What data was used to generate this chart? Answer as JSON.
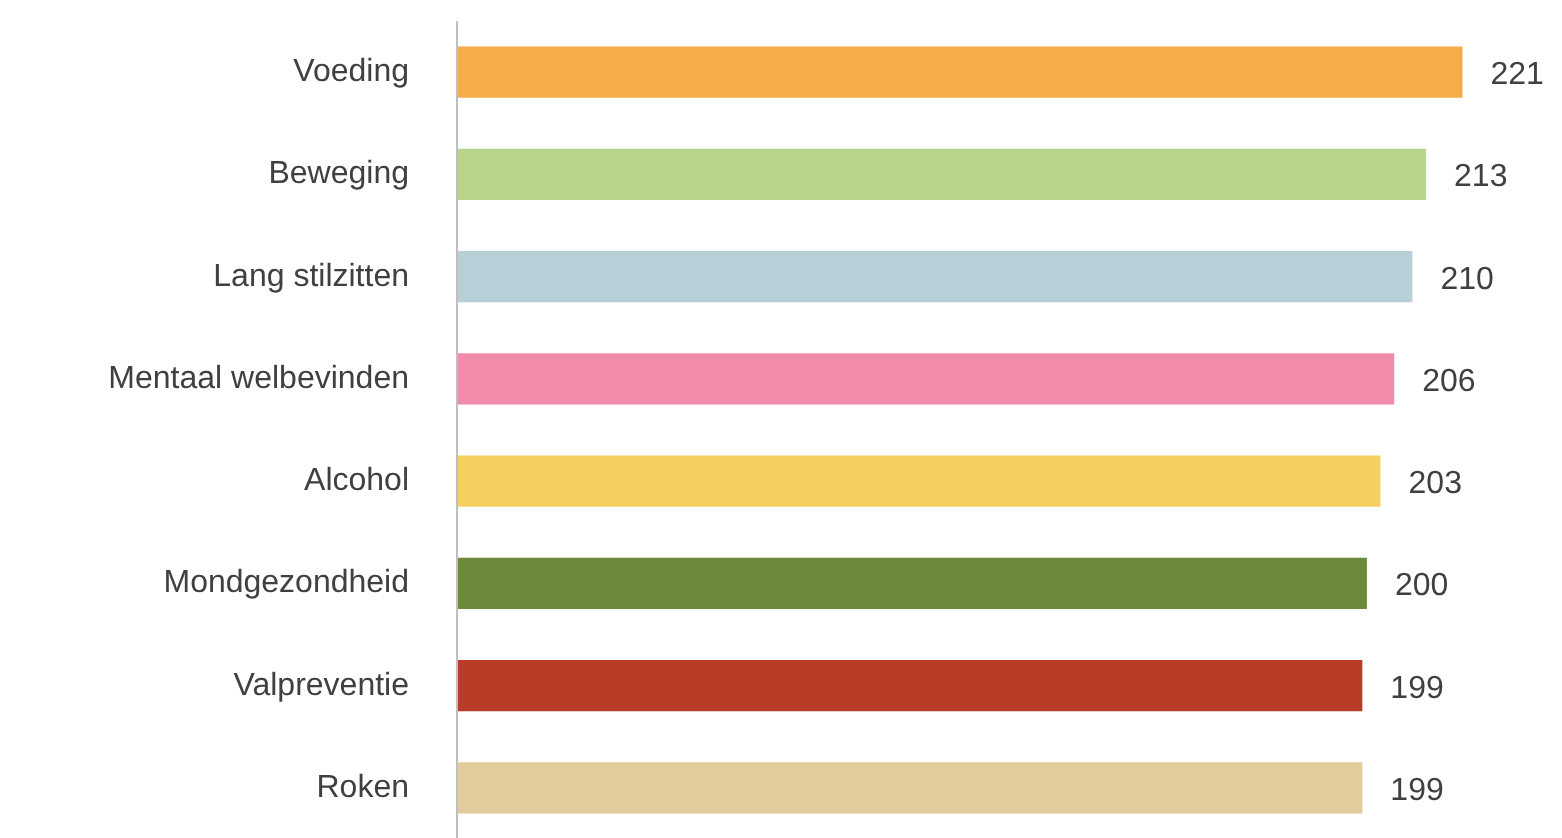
{
  "chart_data": {
    "type": "bar",
    "orientation": "horizontal",
    "data_labels": true,
    "categories": [
      "Voeding",
      "Beweging",
      "Lang stilzitten",
      "Mentaal welbevinden",
      "Alcohol",
      "Mondgezondheid",
      "Valpreventie",
      "Roken"
    ],
    "values": [
      221,
      213,
      210,
      206,
      203,
      200,
      199,
      199
    ],
    "colors": [
      "#f5ac4a",
      "#b8d48a",
      "#b8cfd8",
      "#f08caa",
      "#f5d060",
      "#6b8a3e",
      "#b83c28",
      "#e2cc9c"
    ]
  }
}
